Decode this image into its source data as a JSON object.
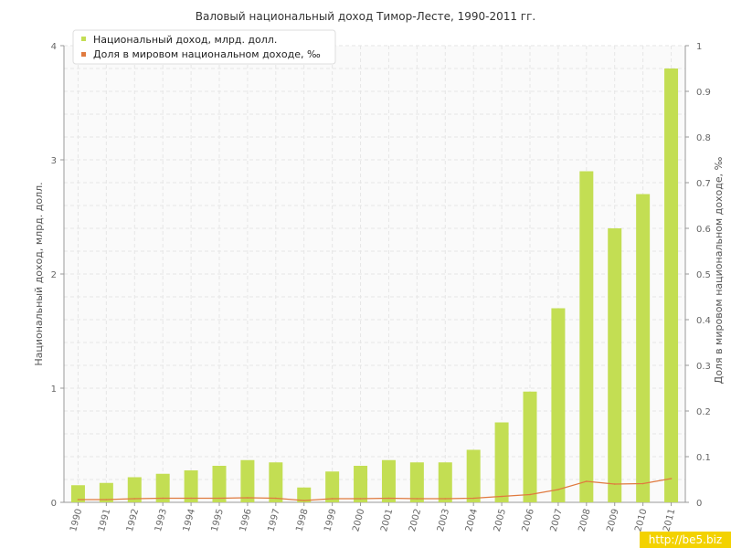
{
  "chart_data": {
    "type": "bar",
    "title": "Валовый национальный доход Тимор-Лесте, 1990-2011 гг.",
    "categories": [
      "1990",
      "1991",
      "1992",
      "1993",
      "1994",
      "1995",
      "1996",
      "1997",
      "1998",
      "1999",
      "2000",
      "2001",
      "2002",
      "2003",
      "2004",
      "2005",
      "2006",
      "2007",
      "2008",
      "2009",
      "2010",
      "2011"
    ],
    "series": [
      {
        "name": "Национальный доход, млрд. долл.",
        "type": "bar",
        "axis": "left",
        "color": "#c3de53",
        "values": [
          0.15,
          0.17,
          0.22,
          0.25,
          0.28,
          0.32,
          0.37,
          0.35,
          0.13,
          0.27,
          0.32,
          0.37,
          0.35,
          0.35,
          0.46,
          0.7,
          0.97,
          1.7,
          2.9,
          2.4,
          2.7,
          3.8
        ]
      },
      {
        "name": "Доля в мировом национальном доходе, ‰",
        "type": "line",
        "axis": "right",
        "color": "#e07a3f",
        "values": [
          0.006,
          0.006,
          0.008,
          0.009,
          0.009,
          0.009,
          0.01,
          0.009,
          0.004,
          0.008,
          0.008,
          0.009,
          0.008,
          0.008,
          0.009,
          0.013,
          0.017,
          0.028,
          0.046,
          0.04,
          0.041,
          0.052
        ]
      }
    ],
    "yleft": {
      "label": "Национальный доход, млрд. долл.",
      "lim": [
        0,
        4
      ],
      "ticks": [
        "0",
        "1",
        "2",
        "3",
        "4"
      ]
    },
    "yright": {
      "label": "Доля в мировом национальном доходе, ‰",
      "lim": [
        0,
        1
      ],
      "ticks": [
        "0",
        "0.1",
        "0.2",
        "0.3",
        "0.4",
        "0.5",
        "0.6",
        "0.7",
        "0.8",
        "0.9",
        "1"
      ]
    },
    "grid": true,
    "legend_position": "top-left"
  },
  "watermark": "http://be5.biz"
}
